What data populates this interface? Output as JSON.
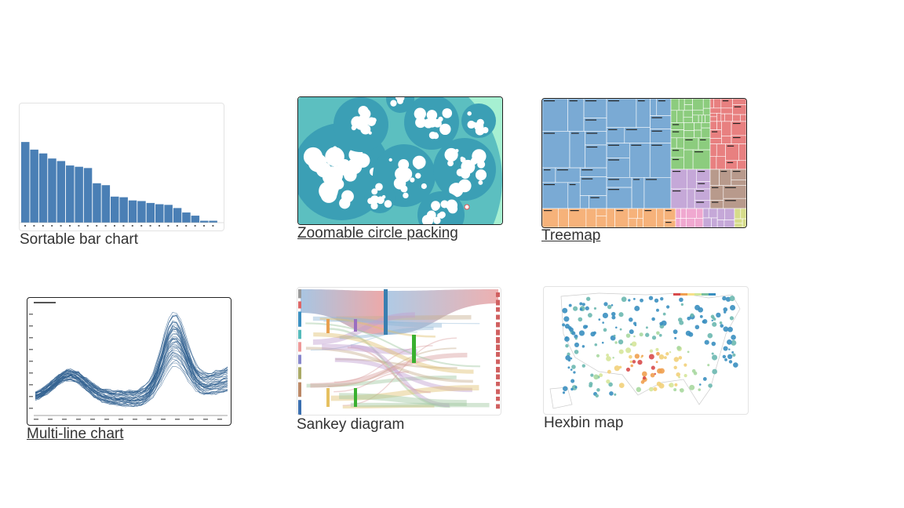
{
  "gallery": {
    "items": [
      {
        "id": "bar",
        "title": "Sortable bar chart",
        "linked": false
      },
      {
        "id": "circle",
        "title": "Zoomable circle packing",
        "linked": true
      },
      {
        "id": "treemap",
        "title": "Treemap",
        "linked": true
      },
      {
        "id": "multiline",
        "title": "Multi-line chart",
        "linked": true
      },
      {
        "id": "sankey",
        "title": "Sankey diagram",
        "linked": false
      },
      {
        "id": "hexbin",
        "title": "Hexbin map",
        "linked": false
      }
    ]
  },
  "thumb_bar": {
    "color": "#4a7fb5",
    "values": [
      12.7,
      11.5,
      10.9,
      10.1,
      9.7,
      9.0,
      8.8,
      8.6,
      6.2,
      5.9,
      4.1,
      4.0,
      3.5,
      3.4,
      3.1,
      2.9,
      2.8,
      2.3,
      1.6,
      1.1,
      0.3,
      0.3
    ]
  },
  "thumb_circle": {
    "background": "#a6f0d2",
    "outer": "#5cbfc0",
    "inner": "#3b9fb5",
    "leaf": "#ffffff"
  },
  "thumb_treemap": {
    "colors": {
      "blue": "#7aaad4",
      "green": "#8ccc7e",
      "red": "#e88080",
      "purple": "#c5a8d8",
      "brown": "#b89a8c",
      "orange": "#f6b27a",
      "pink": "#f0a8d0",
      "lime": "#d6dc8a"
    }
  },
  "thumb_multiline": {
    "line_color": "#2f5f8f"
  },
  "thumb_sankey": {
    "start": "#6f9fcf",
    "end": "#e07070"
  },
  "thumb_hexbin": {
    "low": "#3a8fc0",
    "mid": "#d6e69a",
    "high": "#d84b4b"
  }
}
